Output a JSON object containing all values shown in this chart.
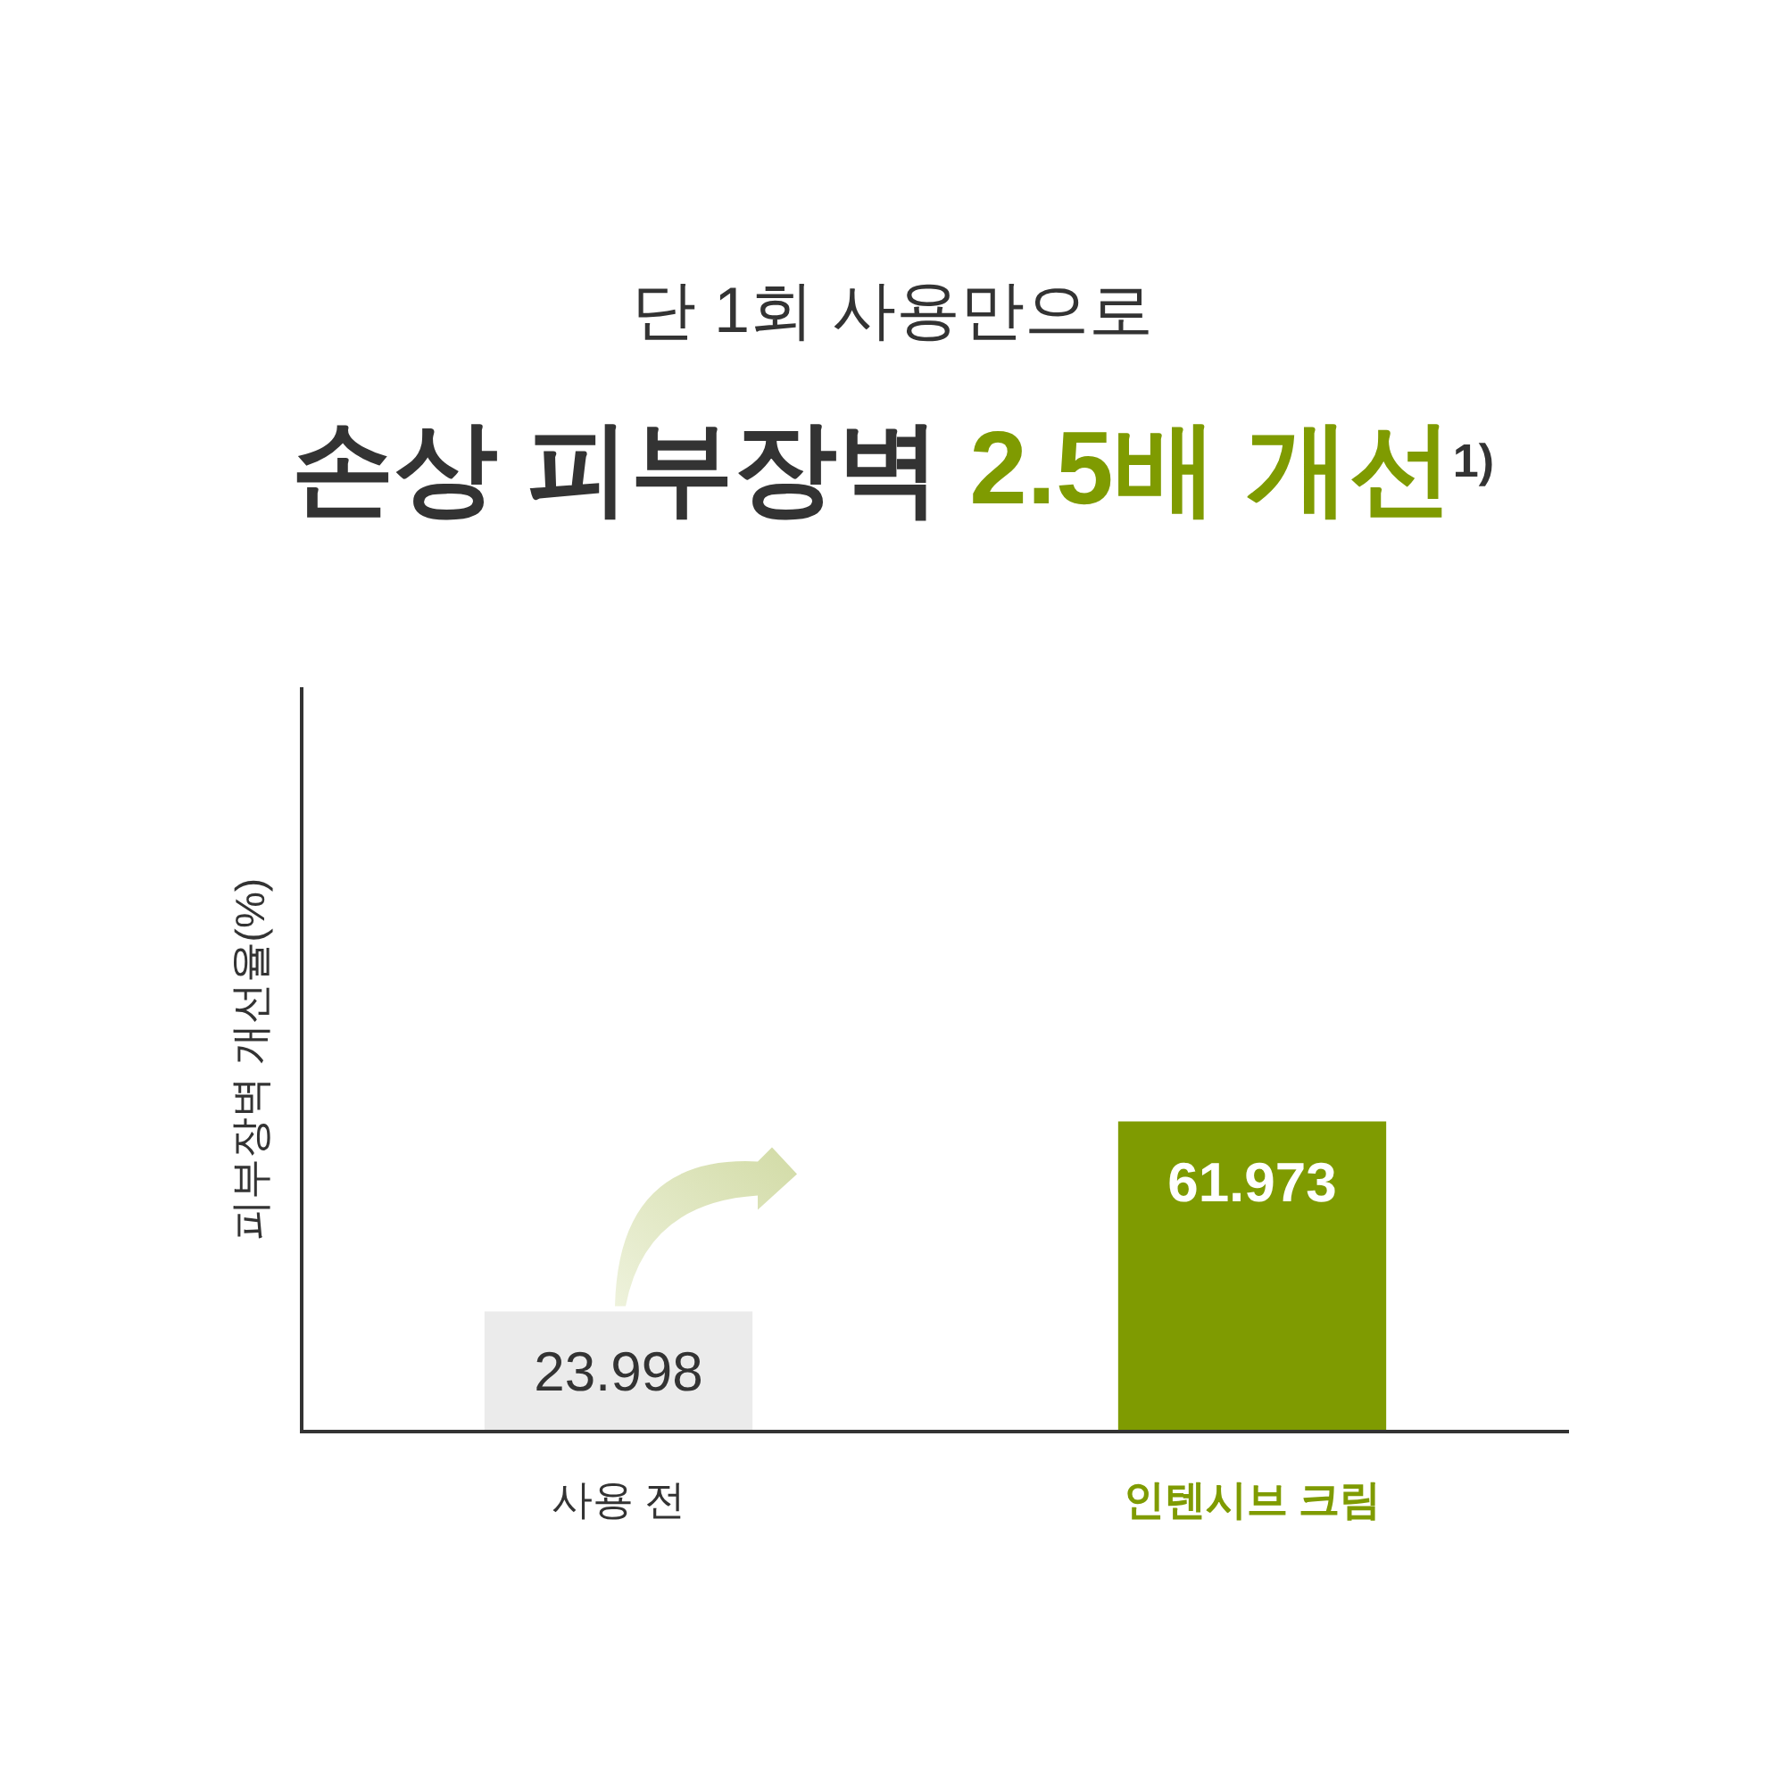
{
  "chart_data": {
    "type": "bar",
    "subtitle": "단 1회 사용만으로",
    "title": "손상 피부장벽 2.5배 개선$^{1)}$",
    "ylabel": "피부장벽 개선율(%)",
    "categories": [
      "사용 전",
      "인텐시브 크림"
    ],
    "values": [
      23.998,
      61.973
    ],
    "colors": [
      "#ebebeb",
      "#7f9b01"
    ],
    "data_labels": true
  }
}
